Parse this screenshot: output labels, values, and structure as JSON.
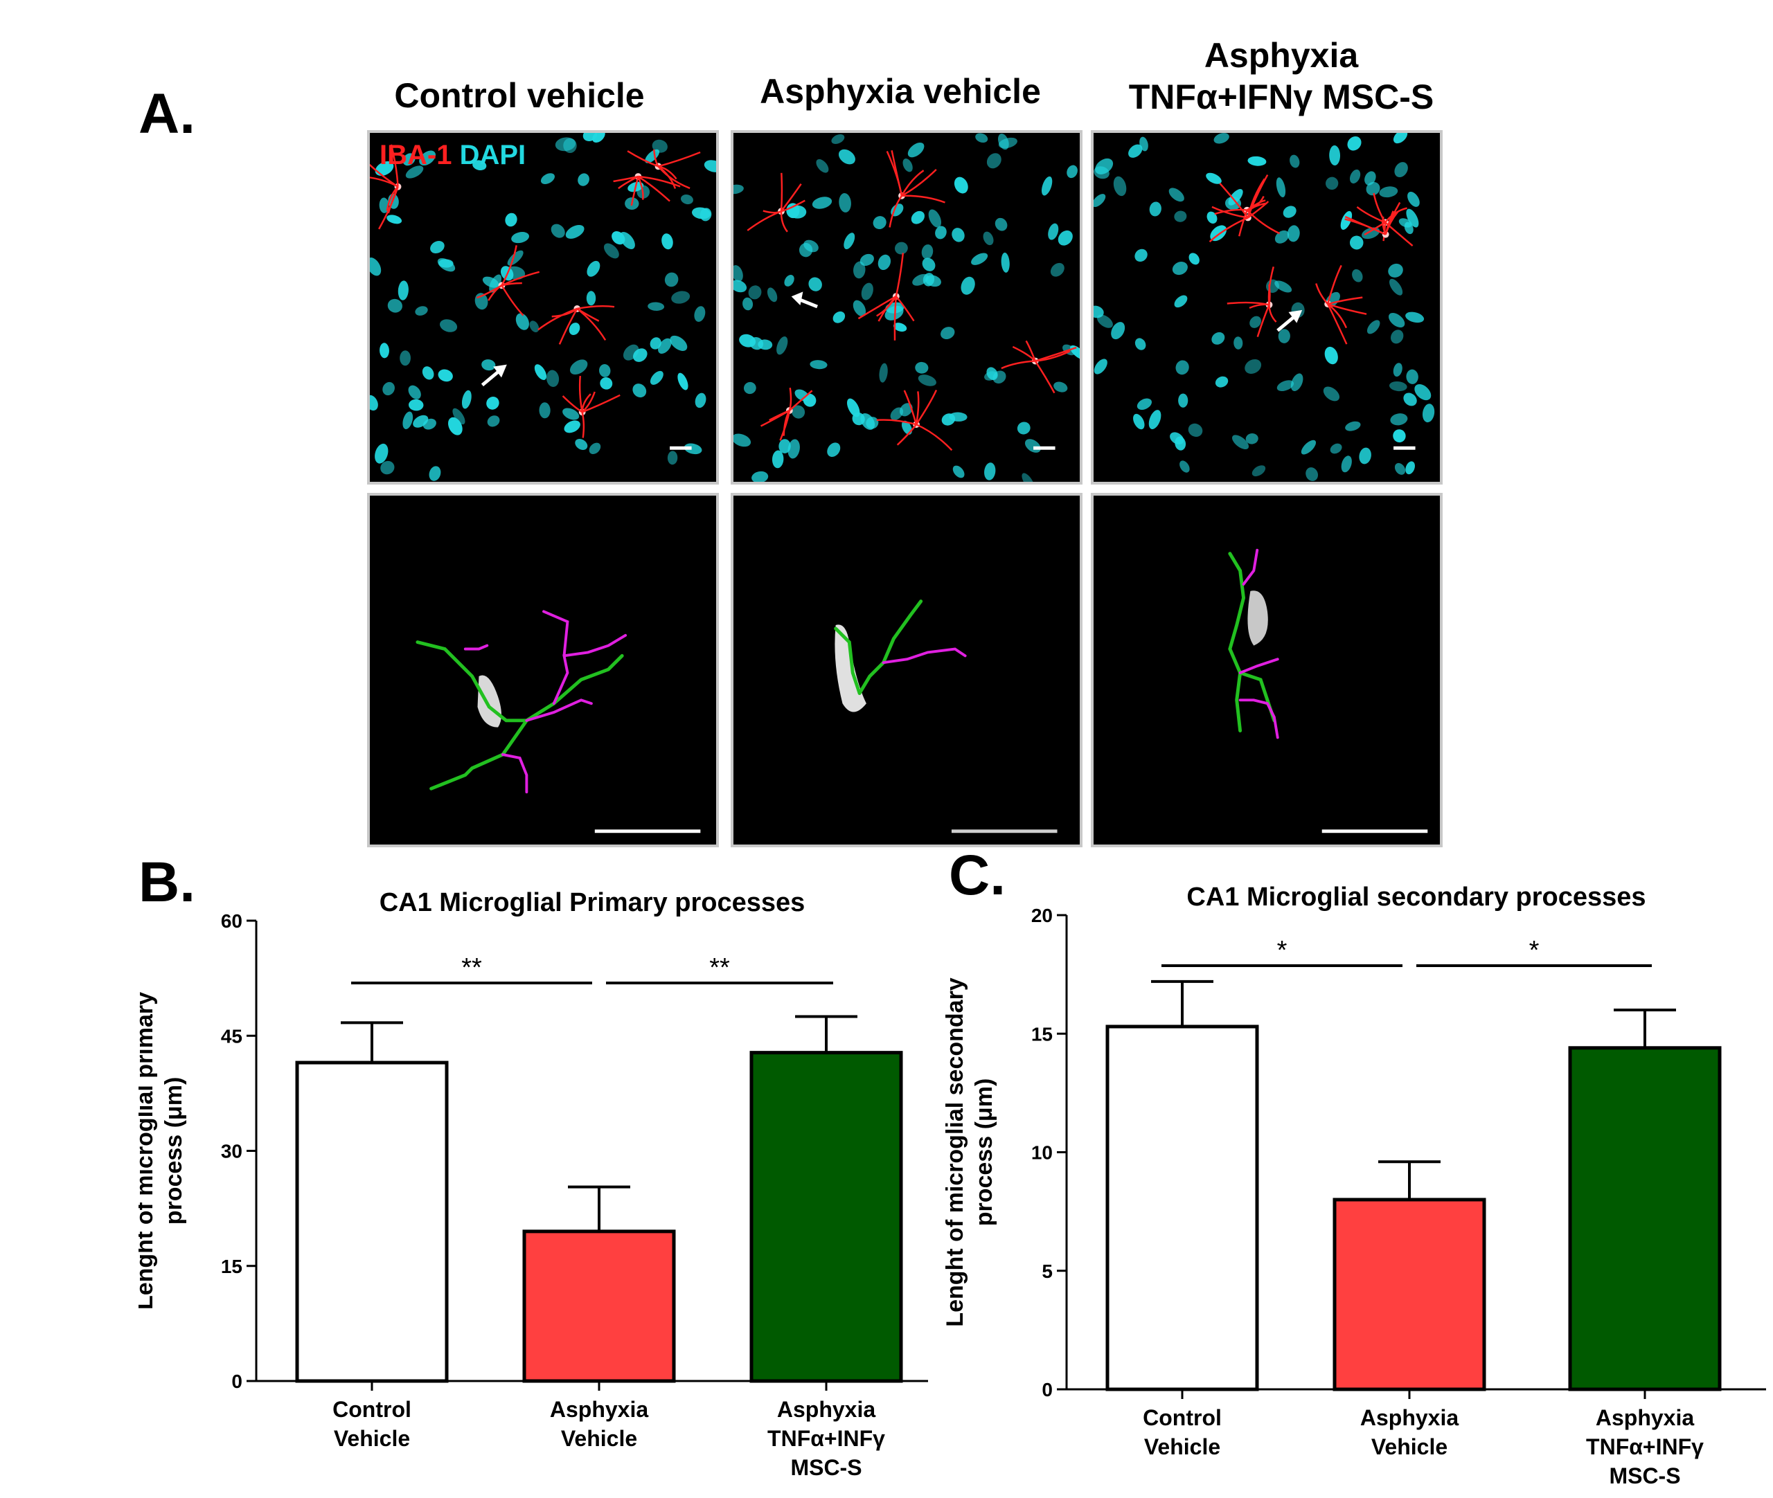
{
  "panel_a": {
    "letter": "A.",
    "columns": [
      {
        "title_lines": [
          "Control vehicle"
        ]
      },
      {
        "title_lines": [
          "Asphyxia vehicle"
        ]
      },
      {
        "title_lines": [
          "Asphyxia",
          "TNFα+IFNγ MSC-S"
        ]
      }
    ],
    "stain_legend": {
      "red": "IBA-1",
      "cyan": "DAPI"
    },
    "colors": {
      "iba1": "#ff2020",
      "dapi": "#22d8e0",
      "primary_trace": "#22c020",
      "secondary_trace": "#e020e0"
    }
  },
  "panel_b": {
    "letter": "B."
  },
  "panel_c": {
    "letter": "C."
  },
  "chart_data": [
    {
      "type": "bar",
      "title": "CA1 Microglial Primary processes",
      "ylabel": "Lenght of microglial primary process (μm)",
      "ylabel_lines": [
        "Lenght of microglial primary",
        "process (μm)"
      ],
      "categories": [
        [
          "Control",
          "Vehicle"
        ],
        [
          "Asphyxia",
          "Vehicle"
        ],
        [
          "Asphyxia",
          "TNFα+INFγ",
          "MSC-S"
        ]
      ],
      "values": [
        41.5,
        19.5,
        42.8
      ],
      "errors": [
        5.2,
        5.8,
        4.7
      ],
      "colors": [
        "#ffffff",
        "#ff4040",
        "#005a00"
      ],
      "ylim": [
        0,
        60
      ],
      "yticks": [
        0,
        15,
        30,
        45,
        60
      ],
      "significance": [
        {
          "from": 0,
          "to": 1,
          "label": "**"
        },
        {
          "from": 1,
          "to": 2,
          "label": "**"
        }
      ]
    },
    {
      "type": "bar",
      "title": "CA1 Microglial secondary processes",
      "ylabel": "Lenght of microglial secondary process (μm)",
      "ylabel_lines": [
        "Lenght of microglial secondary",
        "process (μm)"
      ],
      "categories": [
        [
          "Control",
          "Vehicle"
        ],
        [
          "Asphyxia",
          "Vehicle"
        ],
        [
          "Asphyxia",
          "TNFα+INFγ",
          "MSC-S"
        ]
      ],
      "values": [
        15.3,
        8.0,
        14.4
      ],
      "errors": [
        1.9,
        1.6,
        1.6
      ],
      "colors": [
        "#ffffff",
        "#ff4040",
        "#005a00"
      ],
      "ylim": [
        0,
        20
      ],
      "yticks": [
        0,
        5,
        10,
        15,
        20
      ],
      "significance": [
        {
          "from": 0,
          "to": 1,
          "label": "*"
        },
        {
          "from": 1,
          "to": 2,
          "label": "*"
        }
      ]
    }
  ]
}
